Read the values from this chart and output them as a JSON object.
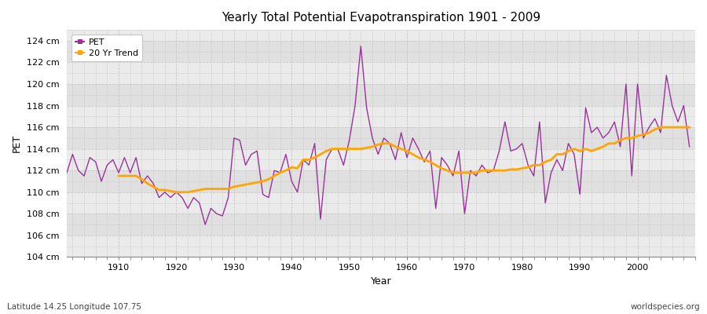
{
  "title": "Yearly Total Potential Evapotranspiration 1901 - 2009",
  "xlabel": "Year",
  "ylabel": "PET",
  "subtitle_left": "Latitude 14.25 Longitude 107.75",
  "subtitle_right": "worldspecies.org",
  "pet_color": "#993399",
  "trend_color": "#FFA500",
  "bg_color": "#FFFFFF",
  "plot_bg_color": "#EBEBEB",
  "plot_bg_alt_color": "#E0E0E0",
  "grid_color": "#C8C8C8",
  "ylim": [
    104,
    125
  ],
  "yticks": [
    104,
    106,
    108,
    110,
    112,
    114,
    116,
    118,
    120,
    122,
    124
  ],
  "ytick_labels": [
    "104 cm",
    "106 cm",
    "108 cm",
    "110 cm",
    "112 cm",
    "114 cm",
    "116 cm",
    "118 cm",
    "120 cm",
    "122 cm",
    "124 cm"
  ],
  "xlim": [
    1901,
    2010
  ],
  "xticks": [
    1910,
    1920,
    1930,
    1940,
    1950,
    1960,
    1970,
    1980,
    1990,
    2000
  ],
  "years": [
    1901,
    1902,
    1903,
    1904,
    1905,
    1906,
    1907,
    1908,
    1909,
    1910,
    1911,
    1912,
    1913,
    1914,
    1915,
    1916,
    1917,
    1918,
    1919,
    1920,
    1921,
    1922,
    1923,
    1924,
    1925,
    1926,
    1927,
    1928,
    1929,
    1930,
    1931,
    1932,
    1933,
    1934,
    1935,
    1936,
    1937,
    1938,
    1939,
    1940,
    1941,
    1942,
    1943,
    1944,
    1945,
    1946,
    1947,
    1948,
    1949,
    1950,
    1951,
    1952,
    1953,
    1954,
    1955,
    1956,
    1957,
    1958,
    1959,
    1960,
    1961,
    1962,
    1963,
    1964,
    1965,
    1966,
    1967,
    1968,
    1969,
    1970,
    1971,
    1972,
    1973,
    1974,
    1975,
    1976,
    1977,
    1978,
    1979,
    1980,
    1981,
    1982,
    1983,
    1984,
    1985,
    1986,
    1987,
    1988,
    1989,
    1990,
    1991,
    1992,
    1993,
    1994,
    1995,
    1996,
    1997,
    1998,
    1999,
    2000,
    2001,
    2002,
    2003,
    2004,
    2005,
    2006,
    2007,
    2008,
    2009
  ],
  "pet_values": [
    111.8,
    113.5,
    112.0,
    111.5,
    113.2,
    112.8,
    111.0,
    112.5,
    113.0,
    111.8,
    113.2,
    111.8,
    113.2,
    110.8,
    111.5,
    110.8,
    109.5,
    110.0,
    109.5,
    110.0,
    109.5,
    108.5,
    109.5,
    109.0,
    107.0,
    108.5,
    108.0,
    107.8,
    109.5,
    115.0,
    114.8,
    112.5,
    113.5,
    113.8,
    109.8,
    109.5,
    112.0,
    111.8,
    113.5,
    111.0,
    110.0,
    113.0,
    112.5,
    114.5,
    107.5,
    113.0,
    114.0,
    114.0,
    112.5,
    114.8,
    118.0,
    123.5,
    117.8,
    115.0,
    113.5,
    115.0,
    114.5,
    113.0,
    115.5,
    113.2,
    115.0,
    114.0,
    112.8,
    113.8,
    108.5,
    113.2,
    112.5,
    111.5,
    113.8,
    108.0,
    112.0,
    111.5,
    112.5,
    111.8,
    112.0,
    113.8,
    116.5,
    113.8,
    114.0,
    114.5,
    112.5,
    111.5,
    116.5,
    109.0,
    111.8,
    113.0,
    112.0,
    114.5,
    113.5,
    109.8,
    117.8,
    115.5,
    116.0,
    115.0,
    115.5,
    116.5,
    114.2,
    120.0,
    111.5,
    120.0,
    115.0,
    116.0,
    116.8,
    115.5,
    120.8,
    118.0,
    116.5,
    118.0,
    114.2
  ],
  "trend_years": [
    1910,
    1911,
    1912,
    1913,
    1914,
    1915,
    1916,
    1917,
    1918,
    1919,
    1920,
    1921,
    1922,
    1923,
    1924,
    1925,
    1926,
    1927,
    1928,
    1929,
    1930,
    1931,
    1932,
    1933,
    1934,
    1935,
    1936,
    1937,
    1938,
    1939,
    1940,
    1941,
    1942,
    1943,
    1944,
    1945,
    1946,
    1947,
    1948,
    1949,
    1950,
    1951,
    1952,
    1953,
    1954,
    1955,
    1956,
    1957,
    1958,
    1959,
    1960,
    1961,
    1962,
    1963,
    1964,
    1965,
    1966,
    1967,
    1968,
    1969,
    1970,
    1971,
    1972,
    1973,
    1974,
    1975,
    1976,
    1977,
    1978,
    1979,
    1980,
    1981,
    1982,
    1983,
    1984,
    1985,
    1986,
    1987,
    1988,
    1989,
    1990,
    1991,
    1992,
    1993,
    1994,
    1995,
    1996,
    1997,
    1998,
    1999,
    2000,
    2001,
    2002,
    2003,
    2004,
    2005,
    2006,
    2007,
    2008,
    2009
  ],
  "trend_values": [
    111.5,
    111.5,
    111.5,
    111.5,
    111.2,
    110.8,
    110.5,
    110.2,
    110.2,
    110.1,
    110.0,
    110.0,
    110.0,
    110.1,
    110.2,
    110.3,
    110.3,
    110.3,
    110.3,
    110.3,
    110.5,
    110.6,
    110.7,
    110.8,
    110.9,
    111.0,
    111.2,
    111.5,
    111.8,
    112.0,
    112.3,
    112.2,
    113.0,
    113.0,
    113.2,
    113.5,
    113.8,
    114.0,
    114.0,
    114.0,
    114.0,
    114.0,
    114.0,
    114.1,
    114.2,
    114.4,
    114.5,
    114.5,
    114.2,
    114.0,
    113.8,
    113.5,
    113.2,
    113.0,
    112.8,
    112.5,
    112.2,
    112.0,
    111.8,
    111.8,
    111.8,
    111.8,
    111.8,
    112.0,
    112.0,
    112.0,
    112.0,
    112.0,
    112.1,
    112.1,
    112.2,
    112.3,
    112.5,
    112.5,
    112.8,
    113.0,
    113.5,
    113.5,
    113.8,
    114.0,
    113.8,
    114.0,
    113.8,
    114.0,
    114.2,
    114.5,
    114.5,
    114.8,
    115.0,
    115.0,
    115.2,
    115.3,
    115.5,
    115.8,
    116.0,
    116.0,
    116.0,
    116.0,
    116.0,
    116.0
  ]
}
